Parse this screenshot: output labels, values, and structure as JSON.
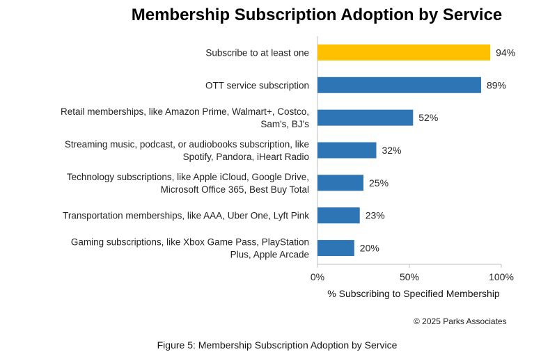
{
  "chart_data": {
    "type": "bar",
    "orientation": "horizontal",
    "title": "Membership Subscription Adoption by Service",
    "categories": [
      [
        "Subscribe to at least one"
      ],
      [
        "OTT service subscription"
      ],
      [
        "Retail memberships, like Amazon Prime, Walmart+, Costco,",
        "Sam's, BJ's"
      ],
      [
        "Streaming music, podcast, or audiobooks subscription, like",
        "Spotify, Pandora, iHeart Radio"
      ],
      [
        "Technology subscriptions, like Apple iCloud, Google Drive,",
        "Microsoft Office 365, Best Buy Total"
      ],
      [
        "Transportation memberships, like AAA, Uber One, Lyft Pink"
      ],
      [
        "Gaming subscriptions, like Xbox Game Pass, PlayStation",
        "Plus, Apple Arcade"
      ]
    ],
    "values": [
      94,
      89,
      52,
      32,
      25,
      23,
      20
    ],
    "value_labels": [
      "94%",
      "89%",
      "52%",
      "32%",
      "25%",
      "23%",
      "20%"
    ],
    "bar_colors": [
      "#FFC000",
      "#2E75B6",
      "#2E75B6",
      "#2E75B6",
      "#2E75B6",
      "#2E75B6",
      "#2E75B6"
    ],
    "xlim": [
      0,
      100
    ],
    "xticks": [
      0,
      50,
      100
    ],
    "xtick_labels": [
      "0%",
      "50%",
      "100%"
    ],
    "xlabel": "% Subscribing to Specified Membership",
    "ylabel": "",
    "grid": false,
    "axis_color": "#BFBFBF"
  },
  "copyright": "© 2025 Parks Associates",
  "caption": "Figure 5: Membership Subscription Adoption by Service"
}
